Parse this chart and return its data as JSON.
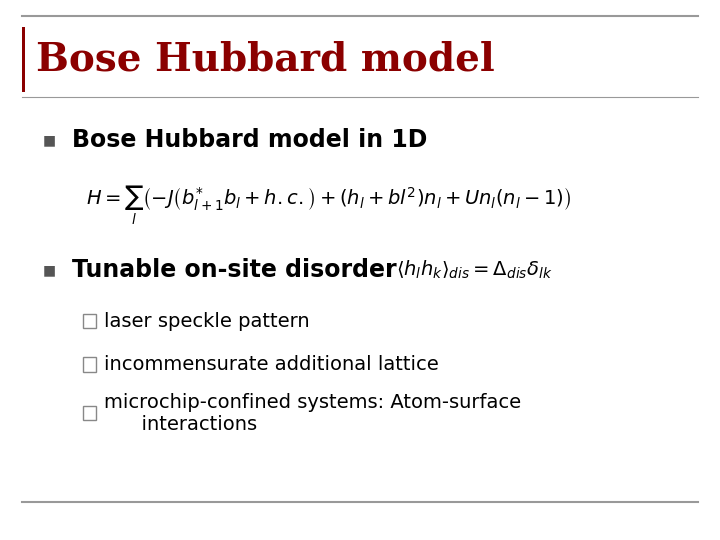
{
  "title": "Bose Hubbard model",
  "title_color": "#8B0000",
  "title_fontsize": 28,
  "bg_color": "#FFFFFF",
  "border_color": "#999999",
  "bullet1_text": "Bose Hubbard model in 1D",
  "bullet1_fontsize": 17,
  "bullet_color": "#555555",
  "equation1": "$H = \\sum_{l}\\left(-J\\left(b^{*}_{l+1}b_l + h.c.\\right) + (h_l + bl^2)n_l + Un_l(n_l-1)\\right)$",
  "equation1_fontsize": 14,
  "bullet2_text": "Tunable on-site disorder",
  "bullet2_fontsize": 17,
  "equation2": "$\\langle h_l h_k \\rangle_{dis} = \\Delta_{dis}\\delta_{lk}$",
  "equation2_fontsize": 14,
  "sub_bullets": [
    "laser speckle pattern",
    "incommensurate additional lattice",
    "microchip-confined systems: Atom-surface\n      interactions"
  ],
  "sub_bullet_fontsize": 14,
  "left_bar_color": "#8B0000",
  "footer_line_color": "#999999"
}
